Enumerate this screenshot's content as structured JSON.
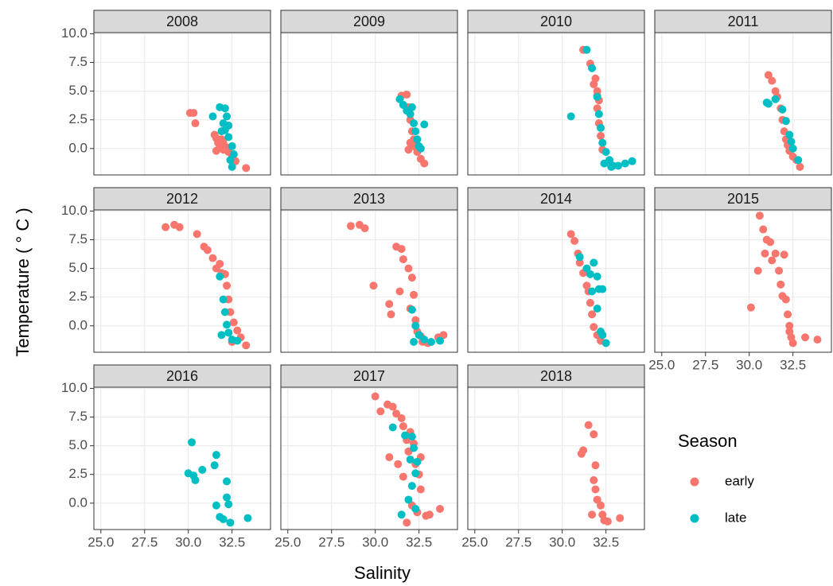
{
  "chart_data": {
    "type": "scatter",
    "x_label": "Salinity",
    "y_label": "Temperature ( ° C )",
    "xlim": [
      24.6,
      34.7
    ],
    "xticks": [
      {
        "value": 25,
        "label": "25.0"
      },
      {
        "value": 27.5,
        "label": "27.5"
      },
      {
        "value": 30,
        "label": "30.0"
      },
      {
        "value": 32.5,
        "label": "32.5"
      }
    ],
    "ylim": [
      -2.3,
      10.1
    ],
    "yticks": [
      {
        "value": 0,
        "label": "0.0"
      },
      {
        "value": 2.5,
        "label": "2.5"
      },
      {
        "value": 5,
        "label": "5.0"
      },
      {
        "value": 7.5,
        "label": "7.5"
      },
      {
        "value": 10,
        "label": "10.0"
      }
    ],
    "grid": true,
    "columns": 4,
    "legend": {
      "title": "Season",
      "series": [
        {
          "name": "early",
          "color": "#F8766D"
        },
        {
          "name": "late",
          "color": "#00BFC4"
        }
      ]
    },
    "facets": [
      {
        "title": "2008",
        "series": [
          {
            "x": [
              30.1,
              30.3,
              30.4,
              31.5,
              31.6,
              31.7,
              31.8,
              31.9,
              32.0,
              32.2,
              32.3,
              32.5,
              32.7,
              33.3,
              31.6,
              32.0
            ],
            "values": [
              3.1,
              3.1,
              2.2,
              1.2,
              0.9,
              0.5,
              0.2,
              0.8,
              -0.1,
              0.1,
              -0.3,
              -0.8,
              -1.1,
              -1.7,
              -0.2,
              0.5
            ]
          },
          {
            "x": [
              31.4,
              31.8,
              32.1,
              32.2,
              32.3,
              32.0,
              32.3,
              32.5,
              32.6,
              32.4,
              32.5,
              32.1,
              31.9
            ],
            "values": [
              2.8,
              3.6,
              3.5,
              2.8,
              2.0,
              2.2,
              1.0,
              0.2,
              -0.5,
              -1.0,
              -1.6,
              1.6,
              1.5
            ]
          }
        ]
      },
      {
        "title": "2009",
        "series": [
          {
            "x": [
              31.5,
              31.8,
              31.9,
              32.0,
              32.1,
              32.2,
              32.2,
              32.4,
              32.6,
              32.8,
              31.9,
              32.0
            ],
            "values": [
              4.6,
              4.7,
              3.6,
              2.5,
              1.5,
              0.8,
              0.2,
              -0.3,
              -0.9,
              -1.3,
              -0.1,
              0.5
            ]
          },
          {
            "x": [
              31.4,
              31.6,
              31.8,
              32.0,
              32.2,
              32.3,
              32.4,
              32.5,
              32.8,
              32.1,
              32.6
            ],
            "values": [
              4.3,
              3.8,
              3.3,
              3.0,
              2.2,
              1.5,
              0.8,
              0.2,
              2.1,
              3.6,
              0.0
            ]
          }
        ]
      },
      {
        "title": "2010",
        "series": [
          {
            "x": [
              31.2,
              31.6,
              31.9,
              32.0,
              32.1,
              32.0,
              32.1,
              32.2,
              32.0,
              31.8,
              32.3
            ],
            "values": [
              8.6,
              7.4,
              6.1,
              5.0,
              4.2,
              3.5,
              2.2,
              1.1,
              4.6,
              5.6,
              -0.1
            ]
          },
          {
            "x": [
              31.4,
              31.7,
              32.0,
              32.1,
              32.2,
              32.3,
              32.5,
              32.7,
              32.9,
              33.2,
              33.6,
              34.0,
              30.5,
              32.4,
              32.8
            ],
            "values": [
              8.6,
              7.0,
              4.5,
              3.0,
              1.8,
              0.5,
              -0.3,
              -1.0,
              -1.5,
              -1.5,
              -1.3,
              -1.1,
              2.8,
              -1.3,
              -1.6
            ]
          }
        ]
      },
      {
        "title": "2011",
        "series": [
          {
            "x": [
              31.1,
              31.3,
              31.6,
              31.8,
              31.9,
              32.0,
              32.1,
              32.3,
              32.5,
              32.7,
              32.9,
              31.5,
              32.2
            ],
            "values": [
              6.4,
              5.9,
              4.5,
              3.5,
              2.5,
              1.5,
              0.8,
              -0.2,
              -0.7,
              -1.0,
              -1.6,
              5.0,
              0.3
            ]
          },
          {
            "x": [
              31.0,
              31.1,
              31.5,
              31.9,
              32.1,
              32.3,
              32.5,
              32.8,
              32.4
            ],
            "values": [
              4.0,
              3.9,
              4.3,
              3.4,
              2.4,
              1.2,
              0.0,
              -1.0,
              0.6
            ]
          }
        ]
      },
      {
        "title": "2012",
        "series": [
          {
            "x": [
              28.7,
              29.2,
              29.5,
              30.5,
              30.9,
              31.1,
              31.4,
              31.6,
              31.9,
              32.1,
              32.2,
              32.3,
              32.4,
              32.6,
              32.8,
              33.0,
              33.3,
              31.8,
              32.5
            ],
            "values": [
              8.6,
              8.8,
              8.6,
              8.0,
              6.9,
              6.6,
              5.9,
              5.0,
              4.6,
              4.5,
              3.5,
              2.3,
              1.2,
              0.3,
              -0.4,
              -1.0,
              -1.7,
              5.4,
              -1.4
            ]
          },
          {
            "x": [
              31.8,
              32.0,
              32.1,
              32.3,
              31.9,
              32.5,
              32.8,
              32.2
            ],
            "values": [
              4.3,
              2.3,
              1.2,
              -0.6,
              -0.8,
              -1.2,
              -1.3,
              0.1
            ]
          }
        ]
      },
      {
        "title": "2013",
        "series": [
          {
            "x": [
              28.6,
              29.1,
              29.4,
              29.9,
              30.8,
              30.9,
              31.2,
              31.5,
              31.6,
              31.9,
              32.1,
              32.2,
              32.0,
              32.3,
              32.4,
              32.7,
              33.0,
              33.6,
              33.9,
              31.4,
              32.6
            ],
            "values": [
              8.7,
              8.8,
              8.5,
              3.5,
              1.9,
              1.0,
              6.9,
              6.7,
              5.8,
              5.0,
              4.2,
              2.7,
              1.5,
              0.5,
              -0.5,
              -1.4,
              -1.5,
              -1.0,
              -0.8,
              3.0,
              -0.9
            ]
          },
          {
            "x": [
              32.1,
              32.3,
              32.5,
              32.8,
              33.2,
              33.7,
              32.2
            ],
            "values": [
              1.4,
              0.0,
              -0.8,
              -1.2,
              -1.4,
              -1.3,
              -1.4
            ]
          }
        ]
      },
      {
        "title": "2014",
        "series": [
          {
            "x": [
              30.5,
              30.7,
              30.9,
              31.2,
              31.4,
              31.6,
              31.7,
              31.8,
              32.0,
              32.2,
              31.0,
              31.5
            ],
            "values": [
              8.0,
              7.4,
              6.3,
              4.6,
              3.5,
              2.0,
              1.0,
              -0.1,
              -0.8,
              -1.3,
              5.5,
              3.0
            ]
          },
          {
            "x": [
              31.0,
              31.4,
              31.6,
              31.8,
              32.0,
              32.1,
              31.7,
              32.3,
              32.0,
              32.3,
              32.5,
              32.2
            ],
            "values": [
              6.0,
              5.0,
              4.5,
              5.5,
              4.3,
              3.2,
              3.0,
              3.2,
              1.5,
              -0.8,
              -1.5,
              -0.5
            ]
          }
        ]
      },
      {
        "title": "2015",
        "series": [
          {
            "x": [
              30.1,
              30.5,
              30.6,
              30.8,
              31.0,
              31.2,
              30.9,
              31.3,
              31.5,
              31.7,
              31.8,
              32.0,
              32.1,
              32.2,
              32.3,
              32.4,
              32.5,
              33.2,
              33.9,
              31.9,
              32.3
            ],
            "values": [
              1.6,
              4.8,
              9.6,
              8.4,
              7.5,
              7.3,
              6.3,
              5.7,
              6.3,
              4.8,
              3.6,
              6.2,
              2.3,
              1.0,
              0.0,
              -1.0,
              -1.5,
              -1.0,
              -1.2,
              2.6,
              -0.5
            ]
          },
          {
            "x": [],
            "values": []
          }
        ]
      },
      {
        "title": "2016",
        "series": [
          {
            "x": [],
            "values": []
          },
          {
            "x": [
              30.0,
              30.2,
              30.3,
              30.4,
              30.8,
              31.5,
              31.6,
              31.6,
              31.8,
              32.2,
              32.2,
              32.3,
              32.4,
              33.4,
              32.0
            ],
            "values": [
              2.6,
              5.3,
              2.4,
              2.0,
              2.9,
              3.3,
              4.2,
              -0.2,
              -1.2,
              1.9,
              0.5,
              -0.1,
              -1.7,
              -1.3,
              -1.4
            ]
          }
        ]
      },
      {
        "title": "2017",
        "series": [
          {
            "x": [
              30.0,
              30.3,
              30.7,
              31.0,
              31.2,
              31.5,
              31.6,
              31.8,
              32.0,
              32.2,
              31.9,
              32.3,
              32.5,
              32.6,
              32.1,
              32.4,
              31.8,
              32.9,
              33.1,
              33.7,
              30.8,
              31.3,
              31.6,
              32.6
            ],
            "values": [
              9.3,
              8.0,
              8.6,
              8.4,
              7.8,
              7.4,
              6.7,
              5.5,
              6.2,
              5.2,
              4.5,
              3.4,
              2.5,
              1.2,
              -0.2,
              -0.8,
              -1.7,
              -1.1,
              -1.0,
              -0.5,
              4.0,
              3.4,
              2.3,
              4.0
            ]
          },
          {
            "x": [
              31.0,
              31.7,
              32.1,
              32.2,
              32.0,
              32.3,
              32.1,
              31.9,
              32.3,
              31.5,
              32.4
            ],
            "values": [
              6.6,
              5.9,
              5.8,
              4.8,
              3.8,
              2.6,
              1.5,
              0.3,
              -0.5,
              -1.0,
              3.6
            ]
          }
        ]
      },
      {
        "title": "2018",
        "series": [
          {
            "x": [
              31.1,
              31.2,
              31.5,
              31.8,
              31.9,
              31.8,
              31.9,
              32.0,
              32.2,
              32.3,
              32.4,
              32.6,
              33.3,
              31.7
            ],
            "values": [
              4.3,
              4.6,
              6.8,
              6.0,
              3.3,
              2.0,
              1.2,
              0.3,
              -0.2,
              -1.0,
              -1.5,
              -1.6,
              -1.3,
              -1.0
            ]
          },
          {
            "x": [],
            "values": []
          }
        ]
      }
    ]
  }
}
